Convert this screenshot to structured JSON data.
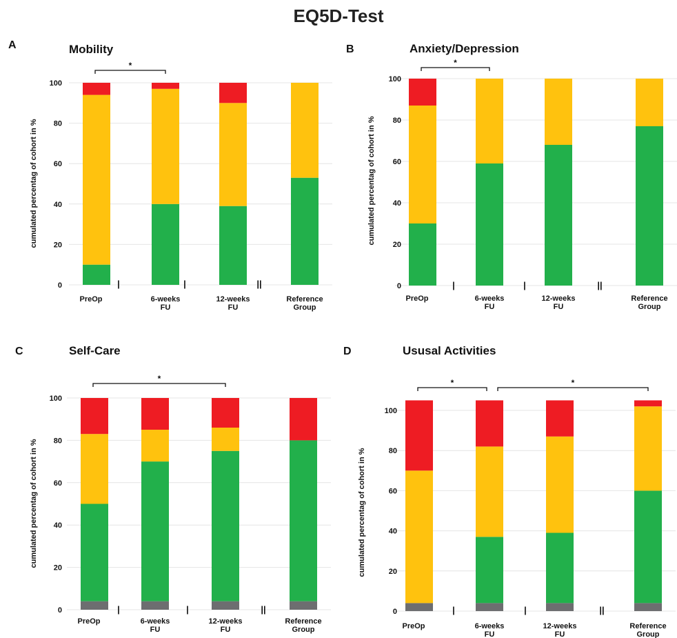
{
  "title": "EQ5D-Test",
  "colors": {
    "green": "#22B04B",
    "yellow": "#FFC20E",
    "red": "#EE1C23",
    "gray": "#6D6E70"
  },
  "chart_data": [
    {
      "type": "bar",
      "stacked": true,
      "panel": "A",
      "title": "Mobility",
      "ylabel": "cumulated percentag of cohort in %",
      "ylim": [
        0,
        100
      ],
      "yticks": [
        0,
        20,
        40,
        60,
        80,
        100
      ],
      "categories": [
        [
          "PreOp"
        ],
        [
          "6-weeks",
          "FU"
        ],
        [
          "12-weeks",
          "FU"
        ],
        [
          "Reference",
          "Group"
        ]
      ],
      "separators": [
        "|",
        "|",
        "||"
      ],
      "series": [
        {
          "color": "green",
          "values": [
            10,
            40,
            39,
            53
          ]
        },
        {
          "color": "yellow",
          "values": [
            84,
            57,
            51,
            47
          ]
        },
        {
          "color": "red",
          "values": [
            6,
            3,
            10,
            0
          ]
        }
      ],
      "significance": [
        {
          "from": 0,
          "to": 1,
          "label": "*"
        }
      ],
      "grid": true
    },
    {
      "type": "bar",
      "stacked": true,
      "panel": "B",
      "title": "Anxiety/Depression",
      "ylabel": "cumulated percentag of cohort in %",
      "ylim": [
        0,
        100
      ],
      "yticks": [
        0,
        20,
        40,
        60,
        80,
        100
      ],
      "categories": [
        [
          "PreOp"
        ],
        [
          "6-weeks",
          "FU"
        ],
        [
          "12-weeks",
          "FU"
        ],
        [
          "Reference",
          "Group"
        ]
      ],
      "separators": [
        "|",
        "|",
        "||"
      ],
      "series": [
        {
          "color": "green",
          "values": [
            30,
            59,
            68,
            77
          ]
        },
        {
          "color": "yellow",
          "values": [
            57,
            41,
            32,
            23
          ]
        },
        {
          "color": "red",
          "values": [
            13,
            0,
            0,
            0
          ]
        }
      ],
      "significance": [
        {
          "from": 0,
          "to": 1,
          "label": "*"
        }
      ],
      "grid": true
    },
    {
      "type": "bar",
      "stacked": true,
      "panel": "C",
      "title": "Self-Care",
      "ylabel": "cumulated percentag of cohort in %",
      "ylim": [
        0,
        100
      ],
      "yticks": [
        0,
        20,
        40,
        60,
        80,
        100
      ],
      "categories": [
        [
          "PreOp"
        ],
        [
          "6-weeks",
          "FU"
        ],
        [
          "12-weeks",
          "FU"
        ],
        [
          "Reference",
          "Group"
        ]
      ],
      "separators": [
        "|",
        "|",
        "||"
      ],
      "series": [
        {
          "color": "gray",
          "values": [
            4,
            4,
            4,
            4
          ]
        },
        {
          "color": "green",
          "values": [
            46,
            66,
            71,
            76
          ]
        },
        {
          "color": "yellow",
          "values": [
            33,
            15,
            11,
            0
          ]
        },
        {
          "color": "red",
          "values": [
            17,
            15,
            14,
            20
          ]
        }
      ],
      "significance": [
        {
          "from": 0,
          "to": 2,
          "label": "*"
        }
      ],
      "grid": true
    },
    {
      "type": "bar",
      "stacked": true,
      "panel": "D",
      "title": "Ususal Activities",
      "ylabel": "cumulated percentag of cohort in %",
      "ylim": [
        0,
        105
      ],
      "yticks": [
        0,
        20,
        40,
        60,
        80,
        100
      ],
      "categories": [
        [
          "PreOp"
        ],
        [
          "6-weeks",
          "FU"
        ],
        [
          "12-weeks",
          "FU"
        ],
        [
          "Reference",
          "Group"
        ]
      ],
      "separators": [
        "|",
        "|",
        "||"
      ],
      "series": [
        {
          "color": "gray",
          "values": [
            4,
            4,
            4,
            4
          ]
        },
        {
          "color": "green",
          "values": [
            0,
            33,
            35,
            56
          ]
        },
        {
          "color": "yellow",
          "values": [
            66,
            45,
            48,
            42
          ]
        },
        {
          "color": "red",
          "values": [
            35,
            23,
            18,
            3
          ]
        }
      ],
      "significance": [
        {
          "from": 0,
          "to": 1,
          "label": "*"
        },
        {
          "from": 1,
          "to": 3,
          "label": "*"
        }
      ],
      "grid": true
    }
  ]
}
